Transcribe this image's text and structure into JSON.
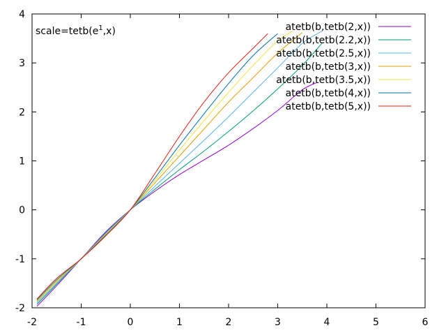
{
  "chart_data": {
    "type": "line",
    "title": "",
    "xlabel": "",
    "ylabel": "",
    "xlim": [
      -2,
      6
    ],
    "ylim": [
      -2,
      4
    ],
    "x_ticks": [
      -2,
      -1,
      0,
      1,
      2,
      3,
      4,
      5,
      6
    ],
    "y_ticks": [
      -2,
      -1,
      0,
      1,
      2,
      3,
      4
    ],
    "grid": false,
    "legend_position": "top-right",
    "annotation": {
      "prefix": "scale=tetb(e",
      "superscript": "1",
      "suffix": ",x)"
    },
    "series": [
      {
        "name": "atetb(b,tetb(2,x))",
        "color": "#9400d3",
        "points": [
          [
            -1.9,
            -1.97
          ],
          [
            -1.5,
            -1.55
          ],
          [
            -1,
            -1
          ],
          [
            -0.5,
            -0.45
          ],
          [
            0,
            0
          ],
          [
            0.5,
            0.38
          ],
          [
            1,
            0.72
          ],
          [
            1.5,
            1.02
          ],
          [
            2,
            1.32
          ],
          [
            2.5,
            1.66
          ],
          [
            3,
            2.03
          ],
          [
            3.5,
            2.45
          ],
          [
            3.8,
            2.6
          ]
        ]
      },
      {
        "name": "atetb(b,tetb(2.2,x))",
        "color": "#009e73",
        "points": [
          [
            -1.9,
            -1.93
          ],
          [
            -1.5,
            -1.52
          ],
          [
            -1,
            -1
          ],
          [
            -0.5,
            -0.47
          ],
          [
            0,
            0
          ],
          [
            0.5,
            0.42
          ],
          [
            1,
            0.82
          ],
          [
            1.5,
            1.2
          ],
          [
            2,
            1.6
          ],
          [
            2.5,
            2.02
          ],
          [
            3,
            2.47
          ],
          [
            3.5,
            2.95
          ],
          [
            3.9,
            3.4
          ]
        ]
      },
      {
        "name": "atetb(b,tetb(2.5,x))",
        "color": "#56b4e9",
        "points": [
          [
            -1.9,
            -1.9
          ],
          [
            -1.5,
            -1.5
          ],
          [
            -1,
            -1
          ],
          [
            -0.5,
            -0.48
          ],
          [
            0,
            0
          ],
          [
            0.5,
            0.48
          ],
          [
            1,
            0.95
          ],
          [
            1.5,
            1.42
          ],
          [
            2,
            1.9
          ],
          [
            2.5,
            2.4
          ],
          [
            3,
            2.9
          ],
          [
            3.5,
            3.4
          ],
          [
            3.9,
            3.65
          ]
        ]
      },
      {
        "name": "atetb(b,tetb(3,x))",
        "color": "#e69f00",
        "points": [
          [
            -1.9,
            -1.87
          ],
          [
            -1.5,
            -1.47
          ],
          [
            -1,
            -1
          ],
          [
            -0.5,
            -0.5
          ],
          [
            0,
            0
          ],
          [
            0.5,
            0.55
          ],
          [
            1,
            1.1
          ],
          [
            1.5,
            1.65
          ],
          [
            2,
            2.2
          ],
          [
            2.5,
            2.7
          ],
          [
            3,
            3.2
          ],
          [
            3.5,
            3.62
          ]
        ]
      },
      {
        "name": "atetb(b,tetb(3.5,x))",
        "color": "#f0e442",
        "points": [
          [
            -1.9,
            -1.85
          ],
          [
            -1.5,
            -1.45
          ],
          [
            -1,
            -1
          ],
          [
            -0.5,
            -0.51
          ],
          [
            0,
            0
          ],
          [
            0.5,
            0.6
          ],
          [
            1,
            1.22
          ],
          [
            1.5,
            1.82
          ],
          [
            2,
            2.4
          ],
          [
            2.5,
            2.95
          ],
          [
            3,
            3.45
          ],
          [
            3.3,
            3.65
          ]
        ]
      },
      {
        "name": "atetb(b,tetb(4,x))",
        "color": "#0072b2",
        "points": [
          [
            -1.9,
            -1.84
          ],
          [
            -1.5,
            -1.43
          ],
          [
            -1,
            -1
          ],
          [
            -0.5,
            -0.52
          ],
          [
            0,
            0
          ],
          [
            0.5,
            0.65
          ],
          [
            1,
            1.32
          ],
          [
            1.5,
            1.96
          ],
          [
            2,
            2.58
          ],
          [
            2.5,
            3.15
          ],
          [
            3,
            3.6
          ]
        ]
      },
      {
        "name": "atetb(b,tetb(5,x))",
        "color": "#e51e10",
        "points": [
          [
            -1.9,
            -1.82
          ],
          [
            -1.5,
            -1.4
          ],
          [
            -1,
            -1
          ],
          [
            -0.5,
            -0.53
          ],
          [
            0,
            0
          ],
          [
            0.5,
            0.74
          ],
          [
            1,
            1.5
          ],
          [
            1.5,
            2.2
          ],
          [
            2,
            2.8
          ],
          [
            2.5,
            3.3
          ],
          [
            2.8,
            3.6
          ]
        ]
      }
    ]
  }
}
